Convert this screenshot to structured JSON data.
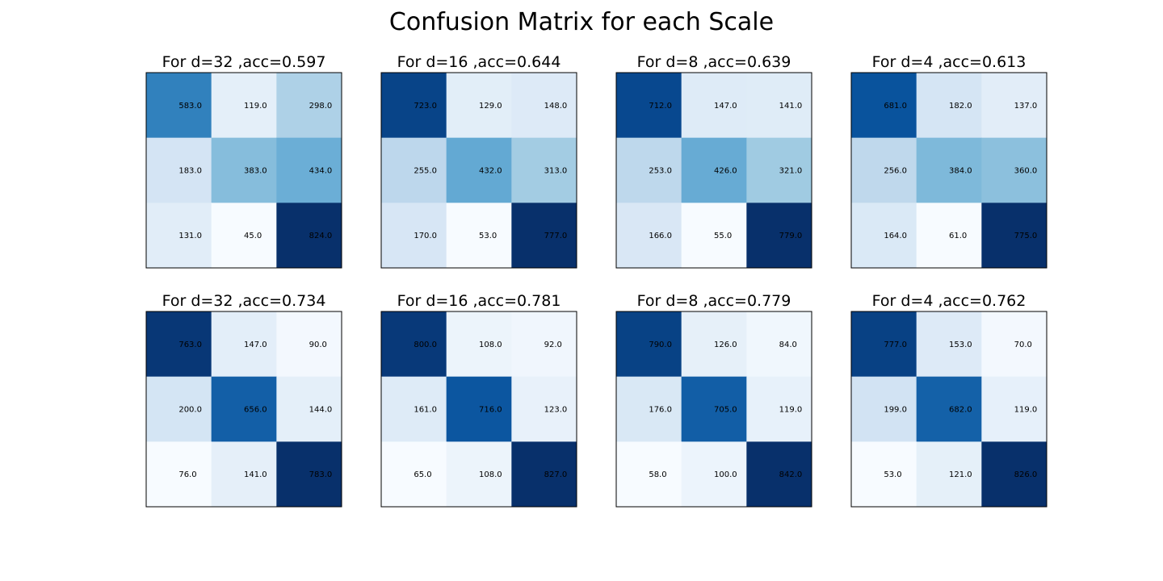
{
  "chart_data": {
    "type": "heatmap",
    "suptitle": "Confusion Matrix for each Scale",
    "colormap": "Blues",
    "colormap_stops": [
      "#f7fbff",
      "#deebf7",
      "#c6dbef",
      "#9ecae1",
      "#6baed6",
      "#4292c6",
      "#2171b5",
      "#08519c",
      "#08306b"
    ],
    "panels": [
      {
        "title": "For d=32 ,acc=0.597",
        "matrix": [
          [
            583.0,
            119.0,
            298.0
          ],
          [
            183.0,
            383.0,
            434.0
          ],
          [
            131.0,
            45.0,
            824.0
          ]
        ]
      },
      {
        "title": "For d=16 ,acc=0.644",
        "matrix": [
          [
            723.0,
            129.0,
            148.0
          ],
          [
            255.0,
            432.0,
            313.0
          ],
          [
            170.0,
            53.0,
            777.0
          ]
        ]
      },
      {
        "title": "For d=8 ,acc=0.639",
        "matrix": [
          [
            712.0,
            147.0,
            141.0
          ],
          [
            253.0,
            426.0,
            321.0
          ],
          [
            166.0,
            55.0,
            779.0
          ]
        ]
      },
      {
        "title": "For d=4 ,acc=0.613",
        "matrix": [
          [
            681.0,
            182.0,
            137.0
          ],
          [
            256.0,
            384.0,
            360.0
          ],
          [
            164.0,
            61.0,
            775.0
          ]
        ]
      },
      {
        "title": "For d=32 ,acc=0.734",
        "matrix": [
          [
            763.0,
            147.0,
            90.0
          ],
          [
            200.0,
            656.0,
            144.0
          ],
          [
            76.0,
            141.0,
            783.0
          ]
        ]
      },
      {
        "title": "For d=16 ,acc=0.781",
        "matrix": [
          [
            800.0,
            108.0,
            92.0
          ],
          [
            161.0,
            716.0,
            123.0
          ],
          [
            65.0,
            108.0,
            827.0
          ]
        ]
      },
      {
        "title": "For d=8 ,acc=0.779",
        "matrix": [
          [
            790.0,
            126.0,
            84.0
          ],
          [
            176.0,
            705.0,
            119.0
          ],
          [
            58.0,
            100.0,
            842.0
          ]
        ]
      },
      {
        "title": "For d=4 ,acc=0.762",
        "matrix": [
          [
            777.0,
            153.0,
            70.0
          ],
          [
            199.0,
            682.0,
            119.0
          ],
          [
            53.0,
            121.0,
            826.0
          ]
        ]
      }
    ]
  }
}
